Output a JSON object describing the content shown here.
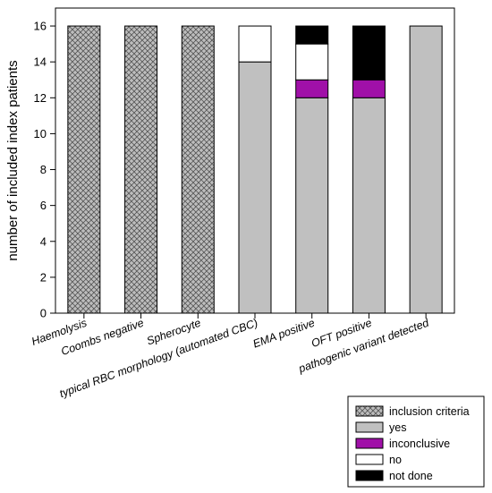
{
  "chart_data": {
    "type": "bar",
    "stacked": true,
    "title": "",
    "xlabel": "",
    "ylabel": "number of included index patients",
    "ylim": [
      0,
      17
    ],
    "yticks": [
      0,
      2,
      4,
      6,
      8,
      10,
      12,
      14,
      16
    ],
    "grid": false,
    "legend_position": "bottom-right",
    "categories": [
      "Haemolysis",
      "Coombs negative",
      "Spherocyte",
      "typical RBC morphology (automated CBC)",
      "EMA positive",
      "OFT positive",
      "pathogenic variant detected"
    ],
    "series": [
      {
        "name": "inclusion criteria",
        "color": "#bdbdbd",
        "pattern": "crosshatch",
        "values": [
          16,
          16,
          16,
          0,
          0,
          0,
          0
        ]
      },
      {
        "name": "yes",
        "color": "#c0c0c0",
        "values": [
          0,
          0,
          0,
          14,
          12,
          12,
          16
        ]
      },
      {
        "name": "inconclusive",
        "color": "#a010a8",
        "values": [
          0,
          0,
          0,
          0,
          1,
          1,
          0
        ]
      },
      {
        "name": "no",
        "color": "#ffffff",
        "values": [
          0,
          0,
          0,
          2,
          2,
          0,
          0
        ]
      },
      {
        "name": "not done",
        "color": "#000000",
        "values": [
          0,
          0,
          0,
          0,
          1,
          3,
          0
        ]
      }
    ]
  }
}
